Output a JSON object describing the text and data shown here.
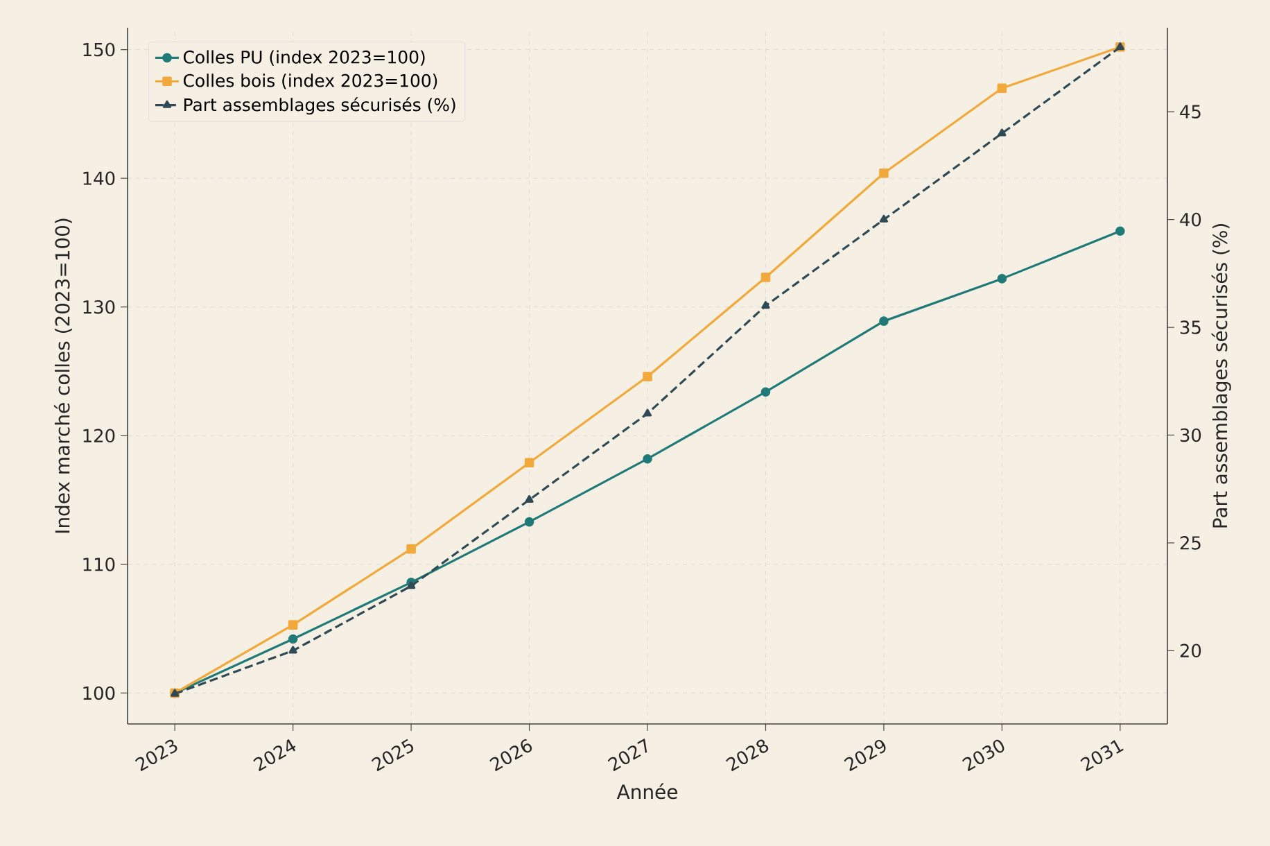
{
  "chart_data": {
    "type": "line",
    "xlabel": "Année",
    "ylabel": "Index marché colles (2023=100)",
    "y2label": "Part assemblages sécurisés (%)",
    "x": [
      2023,
      2024,
      2025,
      2026,
      2027,
      2028,
      2029,
      2030,
      2031
    ],
    "xlim": [
      2022.6,
      2031.4
    ],
    "xticks": [
      2023,
      2024,
      2025,
      2026,
      2027,
      2028,
      2029,
      2030,
      2031
    ],
    "ylim": [
      97.6,
      151.7
    ],
    "yticks": [
      100,
      110,
      120,
      130,
      140,
      150
    ],
    "y2lim": [
      16.6,
      48.9
    ],
    "y2ticks": [
      20,
      25,
      30,
      35,
      40,
      45
    ],
    "grid": true,
    "legend": "top left",
    "series": [
      {
        "name": "Colles PU (index 2023=100)",
        "color": "#1f7a78",
        "marker": "circle",
        "line_style": "solid",
        "values": [
          100,
          104.2,
          108.6,
          113.3,
          118.2,
          123.4,
          128.9,
          132.2,
          135.9
        ]
      },
      {
        "name": "Colles bois (index 2023=100)",
        "color": "#f2a93b",
        "marker": "square",
        "line_style": "solid",
        "values": [
          100,
          105.3,
          111.2,
          117.9,
          124.6,
          132.3,
          140.4,
          147.0,
          150.2
        ]
      },
      {
        "name": "Part assemblages sécurisés (%)",
        "color": "#2f4a55",
        "marker": "triangle",
        "line_style": "dashed",
        "axis": "y2",
        "values": [
          18,
          20,
          23,
          27,
          31,
          36,
          40,
          44,
          48
        ]
      }
    ]
  }
}
